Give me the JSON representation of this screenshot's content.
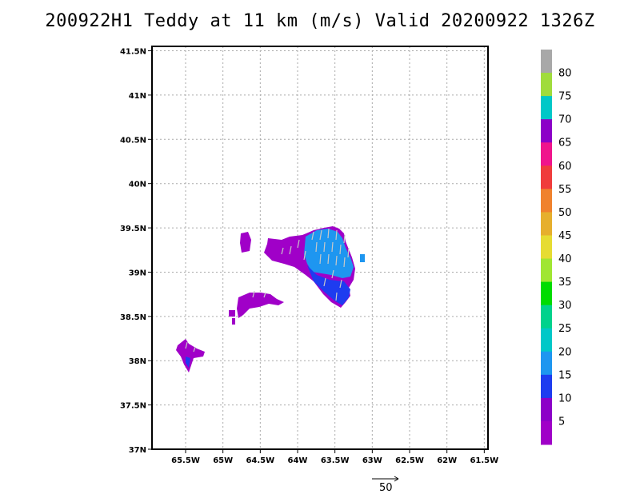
{
  "title": "200922H1 Teddy at 11 km (m/s) Valid 20200922 1326Z",
  "lat_labels": [
    "41.5N",
    "41N",
    "40.5N",
    "40N",
    "39.5N",
    "39N",
    "38.5N",
    "38N",
    "37.5N",
    "37N"
  ],
  "lon_labels": [
    "65.5W",
    "65W",
    "64.5W",
    "64W",
    "63.5W",
    "63W",
    "62.5W",
    "62W",
    "61.5W"
  ],
  "colorbar": {
    "labels": [
      "80",
      "75",
      "70",
      "65",
      "60",
      "55",
      "50",
      "45",
      "40",
      "35",
      "30",
      "25",
      "20",
      "15",
      "10",
      "5"
    ],
    "colors": [
      "#a8a8a8",
      "#a0dc3c",
      "#00c8c8",
      "#8c00c8",
      "#f0148c",
      "#f03c3c",
      "#f0822d",
      "#e6af2d",
      "#e6dc32",
      "#a0e632",
      "#00dc00",
      "#00d28c",
      "#00c8c8",
      "#1e96f0",
      "#1e3cf0",
      "#8c00c8",
      "#a000c8"
    ]
  },
  "reference_vector": {
    "label": "50"
  },
  "map": {
    "lon_range": [
      -65.95,
      -61.45
    ],
    "lat_range": [
      37.0,
      41.55
    ]
  }
}
